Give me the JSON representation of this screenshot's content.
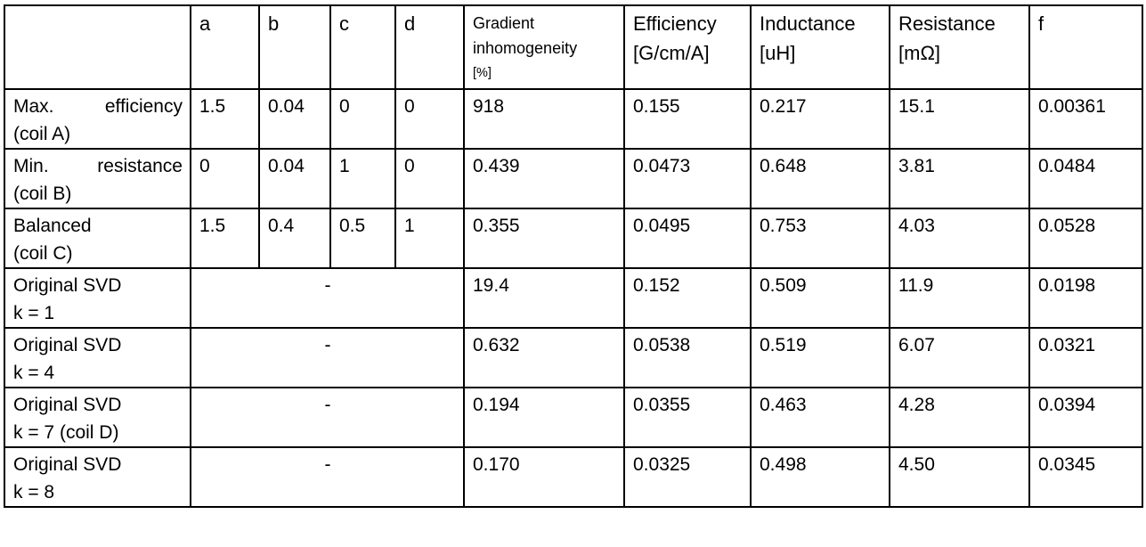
{
  "table": {
    "columns": [
      {
        "id": "row-label",
        "lines": []
      },
      {
        "id": "a",
        "lines": [
          "a"
        ]
      },
      {
        "id": "b",
        "lines": [
          "b"
        ]
      },
      {
        "id": "c",
        "lines": [
          "c"
        ]
      },
      {
        "id": "d",
        "lines": [
          "d"
        ]
      },
      {
        "id": "gradient-inhomogeneity",
        "lines": [
          "Gradient",
          "inhomogeneity",
          "[%]"
        ],
        "small": true
      },
      {
        "id": "efficiency",
        "lines": [
          "Efficiency",
          "[G/cm/A]"
        ]
      },
      {
        "id": "inductance",
        "lines": [
          "Inductance",
          "[uH]"
        ]
      },
      {
        "id": "resistance",
        "lines": [
          "Resistance",
          "[mΩ]"
        ]
      },
      {
        "id": "f",
        "lines": [
          "f"
        ]
      }
    ],
    "rows": [
      {
        "label_lines": [
          "Max. efficiency",
          "(coil A)"
        ],
        "justify_first_line": true,
        "abcd": [
          "1.5",
          "0.04",
          "0",
          "0"
        ],
        "values": [
          "918",
          "0.155",
          "0.217",
          "15.1",
          "0.00361"
        ]
      },
      {
        "label_lines": [
          "Min. resistance",
          "(coil B)"
        ],
        "justify_first_line": true,
        "abcd": [
          "0",
          "0.04",
          "1",
          "0"
        ],
        "values": [
          "0.439",
          "0.0473",
          "0.648",
          "3.81",
          "0.0484"
        ]
      },
      {
        "label_lines": [
          "Balanced",
          "(coil C)"
        ],
        "justify_first_line": false,
        "abcd": [
          "1.5",
          "0.4",
          "0.5",
          "1"
        ],
        "values": [
          "0.355",
          "0.0495",
          "0.753",
          "4.03",
          "0.0528"
        ]
      },
      {
        "label_lines": [
          "Original SVD",
          "k = 1"
        ],
        "justify_first_line": false,
        "merged_abcd": "-",
        "values": [
          "19.4",
          "0.152",
          "0.509",
          "11.9",
          "0.0198"
        ]
      },
      {
        "label_lines": [
          "Original SVD",
          "k = 4"
        ],
        "justify_first_line": false,
        "merged_abcd": "-",
        "values": [
          "0.632",
          "0.0538",
          "0.519",
          "6.07",
          "0.0321"
        ]
      },
      {
        "label_lines": [
          "Original SVD",
          "k = 7 (coil D)"
        ],
        "justify_first_line": false,
        "merged_abcd": "-",
        "values": [
          "0.194",
          "0.0355",
          "0.463",
          "4.28",
          "0.0394"
        ]
      },
      {
        "label_lines": [
          "Original SVD",
          "k = 8"
        ],
        "justify_first_line": false,
        "merged_abcd": "-",
        "values": [
          "0.170",
          "0.0325",
          "0.498",
          "4.50",
          "0.0345"
        ]
      }
    ]
  }
}
